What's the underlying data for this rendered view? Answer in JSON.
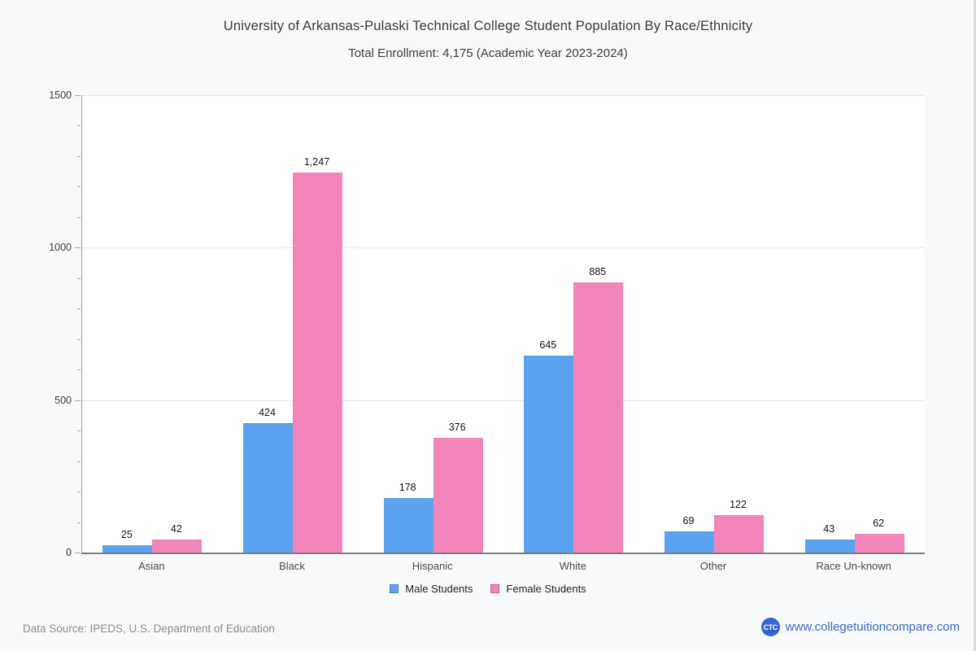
{
  "page": {
    "title": "University of Arkansas-Pulaski Technical College Student Population By Race/Ethnicity",
    "subtitle": "Total Enrollment: 4,175 (Academic Year 2023-2024)",
    "footer": {
      "data_source": "Data Source: IPEDS, U.S. Department of Education",
      "logo_text": "CTC",
      "website": "www.collegetuitioncompare.com"
    }
  },
  "chart_data": {
    "type": "bar",
    "title": "University of Arkansas-Pulaski Technical College Student Population By Race/Ethnicity",
    "subtitle": "Total Enrollment: 4,175 (Academic Year 2023-2024)",
    "categories": [
      "Asian",
      "Black",
      "Hispanic",
      "White",
      "Other",
      "Race Un-known"
    ],
    "series": [
      {
        "name": "Male Students",
        "values": [
          25,
          424,
          178,
          645,
          69,
          43
        ],
        "color": "#5ba3ee",
        "border_color": "#3d7ec6"
      },
      {
        "name": "Female Students",
        "values": [
          42,
          1247,
          376,
          885,
          122,
          62
        ],
        "color": "#f184b8",
        "border_color": "#ce5f96"
      }
    ],
    "xlabel": "",
    "ylabel": "",
    "ylim": [
      0,
      1500
    ],
    "yticks": [
      0,
      500,
      1000,
      1500
    ],
    "minor_tick_step": 100,
    "grid": true,
    "legend_position": "bottom",
    "colors": {
      "plot_background": "#ffffff",
      "page_background": "#f8f9fa",
      "gridline": "#e6e6e6",
      "link_blue": "#3f66d0"
    }
  }
}
